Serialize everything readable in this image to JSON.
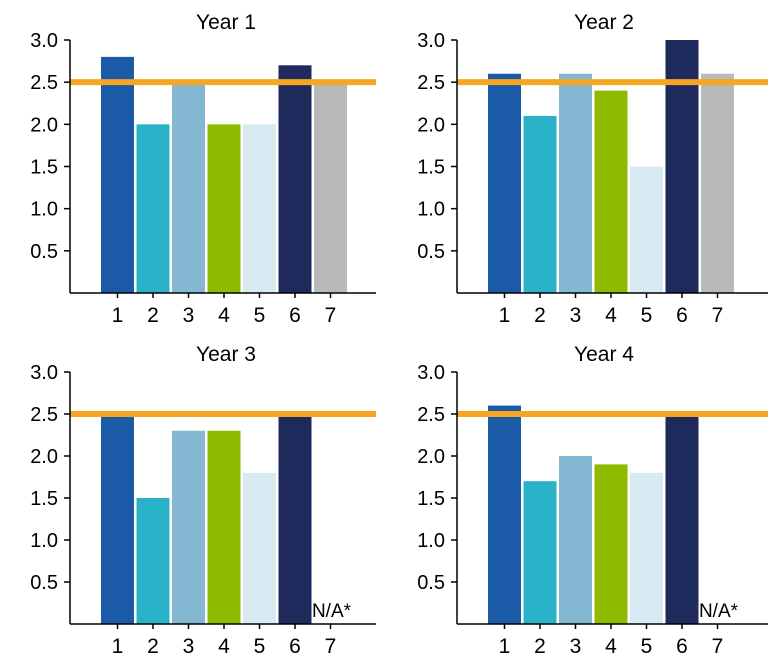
{
  "chart_data": [
    {
      "type": "bar",
      "title": "Year 1",
      "categories": [
        "1",
        "2",
        "3",
        "4",
        "5",
        "6",
        "7"
      ],
      "values": [
        2.8,
        2.0,
        2.5,
        2.0,
        2.0,
        2.7,
        2.5
      ],
      "yticks": [
        "0.5",
        "1.0",
        "1.5",
        "2.0",
        "2.5",
        "3.0"
      ],
      "ylim": [
        0,
        3.0
      ],
      "reference_line": 2.5,
      "na_label": "",
      "grid": false
    },
    {
      "type": "bar",
      "title": "Year 2",
      "categories": [
        "1",
        "2",
        "3",
        "4",
        "5",
        "6",
        "7"
      ],
      "values": [
        2.6,
        2.1,
        2.6,
        2.4,
        1.5,
        3.0,
        2.6
      ],
      "yticks": [
        "0.5",
        "1.0",
        "1.5",
        "2.0",
        "2.5",
        "3.0"
      ],
      "ylim": [
        0,
        3.0
      ],
      "reference_line": 2.5,
      "na_label": "",
      "grid": false
    },
    {
      "type": "bar",
      "title": "Year 3",
      "categories": [
        "1",
        "2",
        "3",
        "4",
        "5",
        "6",
        "7"
      ],
      "values": [
        2.5,
        1.5,
        2.3,
        2.3,
        1.8,
        2.5,
        null
      ],
      "yticks": [
        "0.5",
        "1.0",
        "1.5",
        "2.0",
        "2.5",
        "3.0"
      ],
      "ylim": [
        0,
        3.0
      ],
      "reference_line": 2.5,
      "na_label": "N/A*",
      "grid": false
    },
    {
      "type": "bar",
      "title": "Year 4",
      "categories": [
        "1",
        "2",
        "3",
        "4",
        "5",
        "6",
        "7"
      ],
      "values": [
        2.6,
        1.7,
        2.0,
        1.9,
        1.8,
        2.5,
        null
      ],
      "yticks": [
        "0.5",
        "1.0",
        "1.5",
        "2.0",
        "2.5",
        "3.0"
      ],
      "ylim": [
        0,
        3.0
      ],
      "reference_line": 2.5,
      "na_label": "N/A*",
      "grid": false
    }
  ],
  "colors": {
    "bars": [
      "#1b5aa7",
      "#2ab3c8",
      "#84b8d2",
      "#8eba00",
      "#d7eaf1",
      "#1f2a5c",
      "#b8b9bb"
    ],
    "reference_line": "#f5a623",
    "axis": "#000000"
  }
}
